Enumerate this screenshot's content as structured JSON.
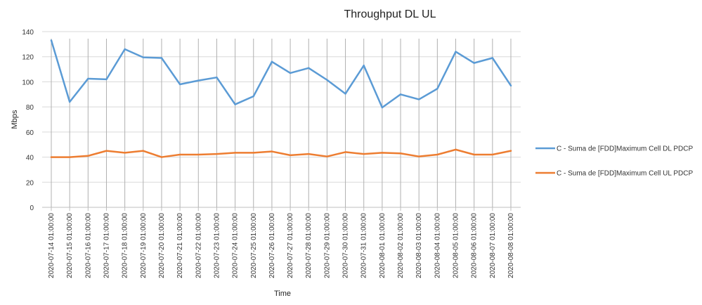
{
  "chart_data": {
    "type": "line",
    "title": "Throughput DL UL",
    "xlabel": "Time",
    "ylabel": "Mbps",
    "ylim": [
      0,
      140
    ],
    "yticks": [
      0,
      20,
      40,
      60,
      80,
      100,
      120,
      140
    ],
    "grid": {
      "horizontal": true,
      "vertical": true
    },
    "legend_position": "right",
    "categories": [
      "2020-07-14 01:00:00",
      "2020-07-15 01:00:00",
      "2020-07-16 01:00:00",
      "2020-07-17 01:00:00",
      "2020-07-18 01:00:00",
      "2020-07-19 01:00:00",
      "2020-07-20 01:00:00",
      "2020-07-21 01:00:00",
      "2020-07-22 01:00:00",
      "2020-07-23 01:00:00",
      "2020-07-24 01:00:00",
      "2020-07-25 01:00:00",
      "2020-07-26 01:00:00",
      "2020-07-27 01:00:00",
      "2020-07-28 01:00:00",
      "2020-07-29 01:00:00",
      "2020-07-30 01:00:00",
      "2020-07-31 01:00:00",
      "2020-08-01 01:00:00",
      "2020-08-02 01:00:00",
      "2020-08-03 01:00:00",
      "2020-08-04 01:00:00",
      "2020-08-05 01:00:00",
      "2020-08-06 01:00:00",
      "2020-08-07 01:00:00",
      "2020-08-08 01:00:00"
    ],
    "series": [
      {
        "name": "C - Suma de [FDD]Maximum Cell DL PDCP",
        "color": "#5b9bd5",
        "values": [
          133,
          84,
          102.5,
          102,
          126,
          119.5,
          119,
          98,
          101,
          103.5,
          82,
          88.5,
          116,
          107,
          111,
          101.5,
          90.5,
          113,
          79.5,
          90,
          86,
          94.5,
          124,
          115,
          119,
          97
        ]
      },
      {
        "name": "C - Suma de [FDD]Maximum Cell UL PDCP",
        "color": "#ed7d31",
        "values": [
          40,
          40,
          41,
          45,
          43.5,
          45,
          40,
          42,
          42,
          42.5,
          43.5,
          43.5,
          44.5,
          41.5,
          42.5,
          40.5,
          44,
          42.5,
          43.5,
          43,
          40.5,
          42,
          46,
          42,
          42,
          45
        ]
      }
    ]
  }
}
